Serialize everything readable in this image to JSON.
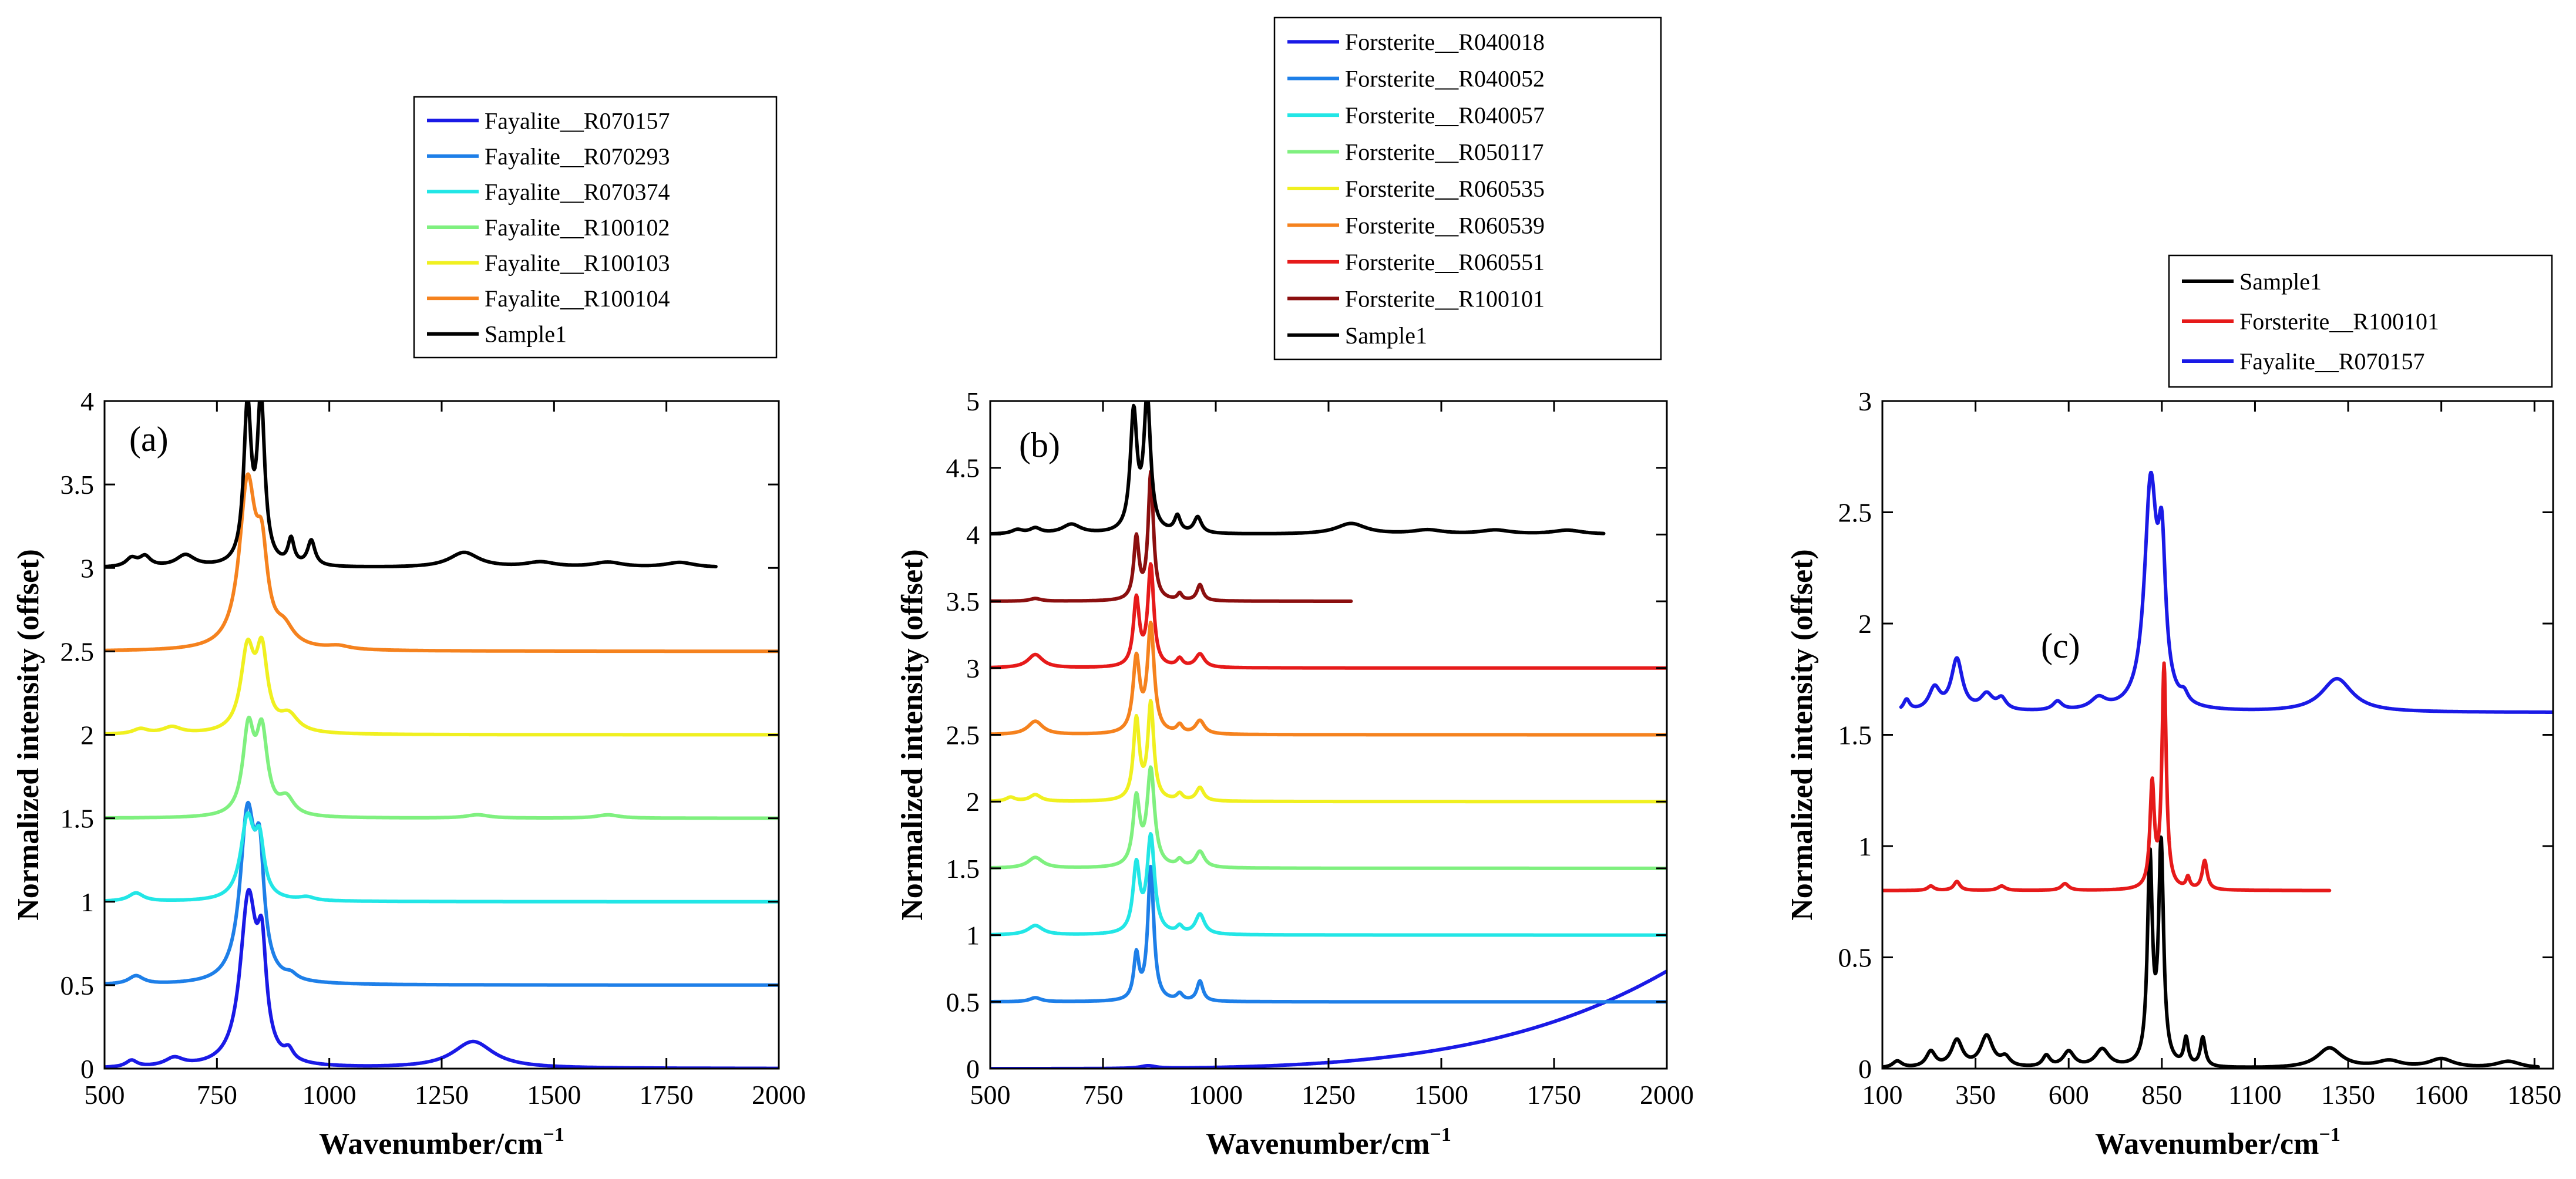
{
  "chart_data": [
    {
      "type": "line",
      "panel_label": "(a)",
      "xlabel": "Wavenumber/cm",
      "xlabel_sup": "−1",
      "ylabel": "Normalized intensity (offset)",
      "xlim": [
        500,
        2000
      ],
      "ylim": [
        0,
        4
      ],
      "xticks": [
        500,
        750,
        1000,
        1250,
        1500,
        1750,
        2000
      ],
      "xtick_labels": [
        "500",
        "750",
        "1000",
        "1250",
        "1500",
        "1750",
        "2000"
      ],
      "yticks": [
        0,
        0.5,
        1,
        1.5,
        2,
        2.5,
        3,
        3.5,
        4
      ],
      "ytick_labels": [
        "0",
        "0.5",
        "1",
        "1.5",
        "2",
        "2.5",
        "3",
        "3.5",
        "4"
      ],
      "legend_position": "top-right, above plot",
      "series": [
        {
          "name": "Fayalite__R070157",
          "color": "#1a1ae6",
          "offset": 0,
          "xrange": [
            500,
            2000
          ],
          "peaks": [
            [
              560,
              0.04,
              15
            ],
            [
              655,
              0.05,
              25
            ],
            [
              820,
              0.99,
              22
            ],
            [
              850,
              0.55,
              12
            ],
            [
              910,
              0.06,
              12
            ],
            [
              1320,
              0.16,
              55
            ]
          ]
        },
        {
          "name": "Fayalite__R070293",
          "color": "#1e7fe8",
          "offset": 0.5,
          "xrange": [
            500,
            2000
          ],
          "peaks": [
            [
              570,
              0.05,
              20
            ],
            [
              818,
              0.99,
              20
            ],
            [
              845,
              0.6,
              12
            ],
            [
              915,
              0.03,
              15
            ]
          ]
        },
        {
          "name": "Fayalite__R070374",
          "color": "#22e6e6",
          "offset": 1.0,
          "xrange": [
            500,
            2000
          ],
          "peaks": [
            [
              570,
              0.05,
              20
            ],
            [
              818,
              0.48,
              18
            ],
            [
              845,
              0.3,
              12
            ],
            [
              950,
              0.02,
              20
            ]
          ]
        },
        {
          "name": "Fayalite__R100102",
          "color": "#7ff07f",
          "offset": 1.5,
          "xrange": [
            500,
            2000
          ],
          "peaks": [
            [
              820,
              0.5,
              15
            ],
            [
              850,
              0.48,
              15
            ],
            [
              905,
              0.1,
              20
            ],
            [
              1330,
              0.02,
              30
            ],
            [
              1620,
              0.02,
              30
            ]
          ]
        },
        {
          "name": "Fayalite__R100103",
          "color": "#f0f020",
          "offset": 2.0,
          "xrange": [
            500,
            2000
          ],
          "peaks": [
            [
              580,
              0.03,
              20
            ],
            [
              650,
              0.04,
              25
            ],
            [
              818,
              0.48,
              18
            ],
            [
              850,
              0.45,
              15
            ],
            [
              910,
              0.1,
              25
            ]
          ]
        },
        {
          "name": "Fayalite__R100104",
          "color": "#f5821e",
          "offset": 2.5,
          "xrange": [
            500,
            2000
          ],
          "peaks": [
            [
              818,
              0.97,
              22
            ],
            [
              850,
              0.45,
              15
            ],
            [
              900,
              0.1,
              25
            ],
            [
              1020,
              0.02,
              30
            ]
          ]
        },
        {
          "name": "Sample1",
          "color": "#000000",
          "offset": 3.0,
          "xrange": [
            500,
            1860
          ],
          "peaks": [
            [
              560,
              0.05,
              15
            ],
            [
              590,
              0.06,
              15
            ],
            [
              680,
              0.07,
              25
            ],
            [
              818,
              0.93,
              10
            ],
            [
              848,
              0.97,
              10
            ],
            [
              915,
              0.15,
              8
            ],
            [
              960,
              0.15,
              10
            ],
            [
              1300,
              0.09,
              40
            ],
            [
              1470,
              0.03,
              40
            ],
            [
              1620,
              0.03,
              40
            ],
            [
              1780,
              0.03,
              40
            ]
          ]
        }
      ]
    },
    {
      "type": "line",
      "panel_label": "(b)",
      "xlabel": "Wavenumber/cm",
      "xlabel_sup": "−1",
      "ylabel": "Normalized intensity (offset)",
      "xlim": [
        500,
        2000
      ],
      "ylim": [
        0,
        5
      ],
      "xticks": [
        500,
        750,
        1000,
        1250,
        1500,
        1750,
        2000
      ],
      "xtick_labels": [
        "500",
        "750",
        "1000",
        "1250",
        "1500",
        "1750",
        "2000"
      ],
      "yticks": [
        0,
        0.5,
        1,
        1.5,
        2,
        2.5,
        3,
        3.5,
        4,
        4.5,
        5
      ],
      "ytick_labels": [
        "0",
        "0.5",
        "1",
        "1.5",
        "2",
        "2.5",
        "3",
        "3.5",
        "4",
        "4.5",
        "5"
      ],
      "legend_position": "top-center, above plot",
      "series": [
        {
          "name": "Forsterite__R040018",
          "color": "#1a1ae6",
          "offset": 0,
          "xrange": [
            500,
            2000
          ],
          "baseline_rise": 0.73,
          "peaks": [
            [
              850,
              0.02,
              20
            ]
          ]
        },
        {
          "name": "Forsterite__R040052",
          "color": "#1e7fe8",
          "offset": 0.5,
          "xrange": [
            500,
            2000
          ],
          "peaks": [
            [
              600,
              0.03,
              15
            ],
            [
              824,
              0.33,
              7
            ],
            [
              856,
              1.0,
              8
            ],
            [
              920,
              0.05,
              8
            ],
            [
              965,
              0.15,
              8
            ]
          ]
        },
        {
          "name": "Forsterite__R040057",
          "color": "#22e6e6",
          "offset": 1.0,
          "xrange": [
            500,
            2000
          ],
          "peaks": [
            [
              600,
              0.07,
              20
            ],
            [
              824,
              0.5,
              9
            ],
            [
              856,
              0.72,
              10
            ],
            [
              920,
              0.05,
              8
            ],
            [
              965,
              0.15,
              12
            ]
          ]
        },
        {
          "name": "Forsterite__R050117",
          "color": "#7ff07f",
          "offset": 1.5,
          "xrange": [
            500,
            2000
          ],
          "peaks": [
            [
              600,
              0.08,
              20
            ],
            [
              824,
              0.5,
              9
            ],
            [
              856,
              0.72,
              10
            ],
            [
              920,
              0.05,
              8
            ],
            [
              965,
              0.12,
              12
            ]
          ]
        },
        {
          "name": "Forsterite__R060535",
          "color": "#f0f020",
          "offset": 2.0,
          "xrange": [
            500,
            2000
          ],
          "peaks": [
            [
              545,
              0.03,
              12
            ],
            [
              600,
              0.05,
              15
            ],
            [
              824,
              0.6,
              8
            ],
            [
              856,
              0.72,
              8
            ],
            [
              920,
              0.05,
              8
            ],
            [
              965,
              0.1,
              10
            ]
          ]
        },
        {
          "name": "Forsterite__R060539",
          "color": "#f5821e",
          "offset": 2.5,
          "xrange": [
            500,
            2000
          ],
          "peaks": [
            [
              600,
              0.1,
              20
            ],
            [
              824,
              0.55,
              9
            ],
            [
              856,
              0.8,
              9
            ],
            [
              920,
              0.06,
              8
            ],
            [
              965,
              0.1,
              12
            ]
          ]
        },
        {
          "name": "Forsterite__R060551",
          "color": "#e61a1a",
          "offset": 3.0,
          "xrange": [
            500,
            2000
          ],
          "peaks": [
            [
              600,
              0.1,
              20
            ],
            [
              824,
              0.5,
              8
            ],
            [
              856,
              0.75,
              8
            ],
            [
              920,
              0.06,
              8
            ],
            [
              965,
              0.1,
              12
            ]
          ]
        },
        {
          "name": "Forsterite__R100101",
          "color": "#8b0f0f",
          "offset": 3.5,
          "xrange": [
            500,
            1300
          ],
          "peaks": [
            [
              600,
              0.02,
              15
            ],
            [
              824,
              0.46,
              7
            ],
            [
              856,
              0.95,
              7
            ],
            [
              920,
              0.05,
              6
            ],
            [
              965,
              0.12,
              8
            ]
          ]
        },
        {
          "name": "Sample1",
          "color": "#000000",
          "offset": 4.0,
          "xrange": [
            500,
            1860
          ],
          "peaks": [
            [
              560,
              0.03,
              15
            ],
            [
              600,
              0.04,
              15
            ],
            [
              680,
              0.07,
              25
            ],
            [
              818,
              0.88,
              9
            ],
            [
              848,
              0.99,
              9
            ],
            [
              915,
              0.12,
              8
            ],
            [
              960,
              0.12,
              10
            ],
            [
              1300,
              0.08,
              40
            ],
            [
              1470,
              0.03,
              40
            ],
            [
              1620,
              0.03,
              40
            ],
            [
              1780,
              0.03,
              40
            ]
          ]
        }
      ]
    },
    {
      "type": "line",
      "panel_label": "(c)",
      "xlabel": "Wavenumber/cm",
      "xlabel_sup": "−1",
      "ylabel": "Normalized intensity (offset)",
      "xlim": [
        100,
        1900
      ],
      "ylim": [
        0,
        3
      ],
      "xticks": [
        100,
        350,
        600,
        850,
        1100,
        1350,
        1600,
        1850
      ],
      "xtick_labels": [
        "100",
        "350",
        "600",
        "850",
        "1100",
        "1350",
        "1600",
        "1850"
      ],
      "yticks": [
        0,
        0.5,
        1,
        1.5,
        2,
        2.5,
        3
      ],
      "ytick_labels": [
        "0",
        "0.5",
        "1",
        "1.5",
        "2",
        "2.5",
        "3"
      ],
      "legend_position": "top-right, above plot",
      "series": [
        {
          "name": "Sample1",
          "color": "#000000",
          "offset": 0,
          "xrange": [
            100,
            1860
          ],
          "peaks": [
            [
              140,
              0.03,
              15
            ],
            [
              230,
              0.07,
              15
            ],
            [
              300,
              0.12,
              18
            ],
            [
              380,
              0.14,
              20
            ],
            [
              430,
              0.04,
              15
            ],
            [
              540,
              0.05,
              12
            ],
            [
              600,
              0.07,
              18
            ],
            [
              690,
              0.08,
              22
            ],
            [
              818,
              0.92,
              8
            ],
            [
              848,
              0.98,
              8
            ],
            [
              915,
              0.12,
              7
            ],
            [
              960,
              0.13,
              8
            ],
            [
              1300,
              0.09,
              40
            ],
            [
              1460,
              0.03,
              40
            ],
            [
              1600,
              0.04,
              40
            ],
            [
              1780,
              0.03,
              40
            ]
          ]
        },
        {
          "name": "Forsterite__R100101",
          "color": "#e61a1a",
          "offset": 0.8,
          "xrange": [
            100,
            1300
          ],
          "peaks": [
            [
              230,
              0.02,
              10
            ],
            [
              300,
              0.04,
              10
            ],
            [
              420,
              0.02,
              12
            ],
            [
              590,
              0.03,
              12
            ],
            [
              824,
              0.46,
              7
            ],
            [
              856,
              1.0,
              7
            ],
            [
              920,
              0.05,
              6
            ],
            [
              965,
              0.13,
              8
            ]
          ]
        },
        {
          "name": "Fayalite__R070157",
          "color": "#1a1ae6",
          "offset": 1.6,
          "xrange": [
            150,
            1900
          ],
          "peaks": [
            [
              165,
              0.05,
              10
            ],
            [
              240,
              0.1,
              18
            ],
            [
              300,
              0.23,
              18
            ],
            [
              380,
              0.07,
              20
            ],
            [
              420,
              0.05,
              15
            ],
            [
              570,
              0.04,
              15
            ],
            [
              680,
              0.05,
              25
            ],
            [
              820,
              0.99,
              20
            ],
            [
              850,
              0.6,
              12
            ],
            [
              910,
              0.04,
              12
            ],
            [
              1320,
              0.15,
              50
            ]
          ]
        }
      ]
    }
  ]
}
